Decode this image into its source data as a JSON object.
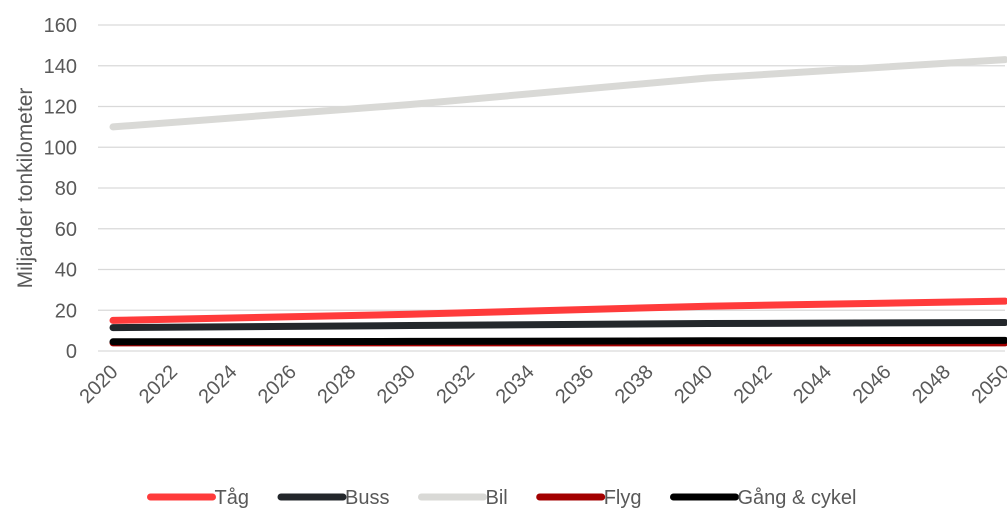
{
  "chart_data": {
    "type": "line",
    "title": "",
    "xlabel": "",
    "ylabel": "Miljarder tonkilometer",
    "x": [
      2020,
      2030,
      2040,
      2050
    ],
    "x_ticks": [
      "2020",
      "2022",
      "2024",
      "2026",
      "2028",
      "2030",
      "2032",
      "2034",
      "2036",
      "2038",
      "2040",
      "2042",
      "2044",
      "2046",
      "2048",
      "2050"
    ],
    "xlim": [
      2020,
      2050
    ],
    "ylim": [
      0,
      160
    ],
    "y_ticks": [
      "0",
      "20",
      "40",
      "60",
      "80",
      "100",
      "120",
      "140",
      "160"
    ],
    "grid": true,
    "legend_position": "bottom",
    "series": [
      {
        "name": "Tåg",
        "color": "#ff3b3b",
        "values": [
          15,
          18,
          22,
          24.5
        ]
      },
      {
        "name": "Buss",
        "color": "#23272b",
        "values": [
          11.5,
          12.5,
          13.5,
          14
        ]
      },
      {
        "name": "Bil",
        "color": "#d9d9d6",
        "values": [
          110,
          121,
          134,
          143
        ]
      },
      {
        "name": "Flyg",
        "color": "#a30000",
        "values": [
          4,
          4,
          4,
          4
        ]
      },
      {
        "name": "Gång & cykel",
        "color": "#000000",
        "values": [
          4.5,
          4.7,
          5,
          5.2
        ]
      }
    ]
  }
}
